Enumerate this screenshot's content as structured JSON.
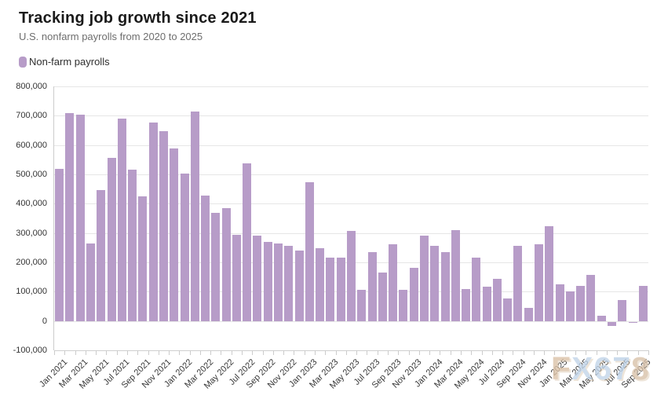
{
  "header": {
    "title": "Tracking job growth since 2021",
    "subtitle": "U.S. nonfarm payrolls from 2020 to 2025"
  },
  "legend": {
    "label": "Non-farm payrolls",
    "swatch_color": "#b79cc8"
  },
  "watermark": {
    "text": "FX678",
    "letter_colors": [
      "#dcc3a8",
      "#c2d5e9",
      "#c2d5e9",
      "#bfd3e8",
      "#d9c2aa"
    ]
  },
  "chart_data": {
    "type": "bar",
    "title": "Tracking job growth since 2021",
    "subtitle": "U.S. nonfarm payrolls from 2020 to 2025",
    "series_name": "Non-farm payrolls",
    "bar_color": "#b79cc8",
    "grid": true,
    "legend_position": "top-left",
    "ylim": [
      -100000,
      800000
    ],
    "ytick_step": 100000,
    "xlabel_every": 2,
    "categories": [
      "Jan 2021",
      "Feb 2021",
      "Mar 2021",
      "Apr 2021",
      "May 2021",
      "Jun 2021",
      "Jul 2021",
      "Aug 2021",
      "Sep 2021",
      "Oct 2021",
      "Nov 2021",
      "Dec 2021",
      "Jan 2022",
      "Feb 2022",
      "Mar 2022",
      "Apr 2022",
      "May 2022",
      "Jun 2022",
      "Jul 2022",
      "Aug 2022",
      "Sep 2022",
      "Oct 2022",
      "Nov 2022",
      "Dec 2022",
      "Jan 2023",
      "Feb 2023",
      "Mar 2023",
      "Apr 2023",
      "May 2023",
      "Jun 2023",
      "Jul 2023",
      "Aug 2023",
      "Sep 2023",
      "Oct 2023",
      "Nov 2023",
      "Dec 2023",
      "Jan 2024",
      "Feb 2024",
      "Mar 2024",
      "Apr 2024",
      "May 2024",
      "Jun 2024",
      "Jul 2024",
      "Aug 2024",
      "Sep 2024",
      "Oct 2024",
      "Nov 2024",
      "Dec 2024",
      "Jan 2025",
      "Feb 2025",
      "Mar 2025",
      "Apr 2025",
      "May 2025",
      "Jun 2025",
      "Jul 2025",
      "Aug 2025",
      "Sep 2025"
    ],
    "values": [
      520000,
      710000,
      704000,
      263000,
      447000,
      557000,
      689000,
      517000,
      424000,
      677000,
      647000,
      588000,
      504000,
      714000,
      428000,
      368000,
      386000,
      293000,
      537000,
      292000,
      269000,
      263000,
      256000,
      239000,
      472000,
      248000,
      217000,
      217000,
      306000,
      105000,
      236000,
      165000,
      262000,
      105000,
      182000,
      290000,
      256000,
      236000,
      310000,
      108000,
      216000,
      118000,
      144000,
      78000,
      255000,
      44000,
      261000,
      323000,
      125000,
      102000,
      120000,
      158000,
      19000,
      -13000,
      72000,
      -4000,
      119000
    ]
  }
}
